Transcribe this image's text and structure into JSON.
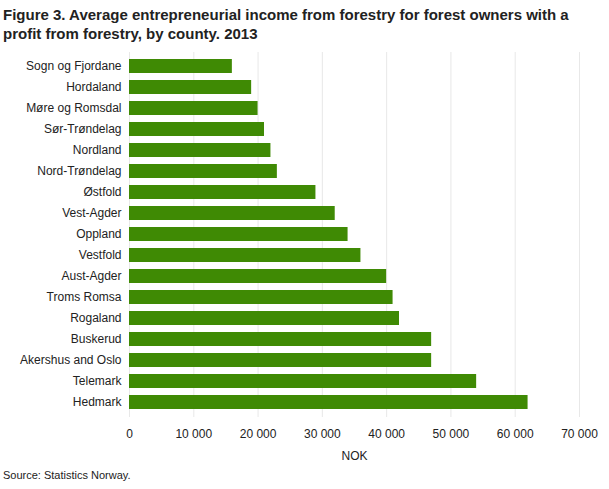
{
  "chart_data": {
    "type": "bar",
    "orientation": "horizontal",
    "title": "Figure 3. Average entrepreneurial income from forestry for forest owners with a profit from forestry, by county. 2013",
    "x_label": "NOK",
    "source": "Source: Statistics Norway.",
    "categories": [
      "Sogn og Fjordane",
      "Hordaland",
      "Møre og Romsdal",
      "Sør-Trøndelag",
      "Nordland",
      "Nord-Trøndelag",
      "Østfold",
      "Vest-Agder",
      "Oppland",
      "Vestfold",
      "Aust-Agder",
      "Troms Romsa",
      "Rogaland",
      "Buskerud",
      "Akershus and Oslo",
      "Telemark",
      "Hedmark"
    ],
    "values": [
      16000,
      19000,
      20000,
      21000,
      22000,
      23000,
      29000,
      32000,
      34000,
      36000,
      40000,
      41000,
      42000,
      47000,
      47000,
      54000,
      62000
    ],
    "color": "#3f8a04",
    "xlim": [
      0,
      70000
    ],
    "xticks": [
      0,
      {
        "value": 10000,
        "label": "10 000"
      },
      {
        "value": 20000,
        "label": "20 000"
      },
      {
        "value": 30000,
        "label": "30 000"
      },
      {
        "value": 40000,
        "label": "40 000"
      },
      {
        "value": 50000,
        "label": "50 000"
      },
      {
        "value": 60000,
        "label": "60 000"
      },
      {
        "value": 70000,
        "label": "70 000"
      }
    ],
    "grid": true
  }
}
